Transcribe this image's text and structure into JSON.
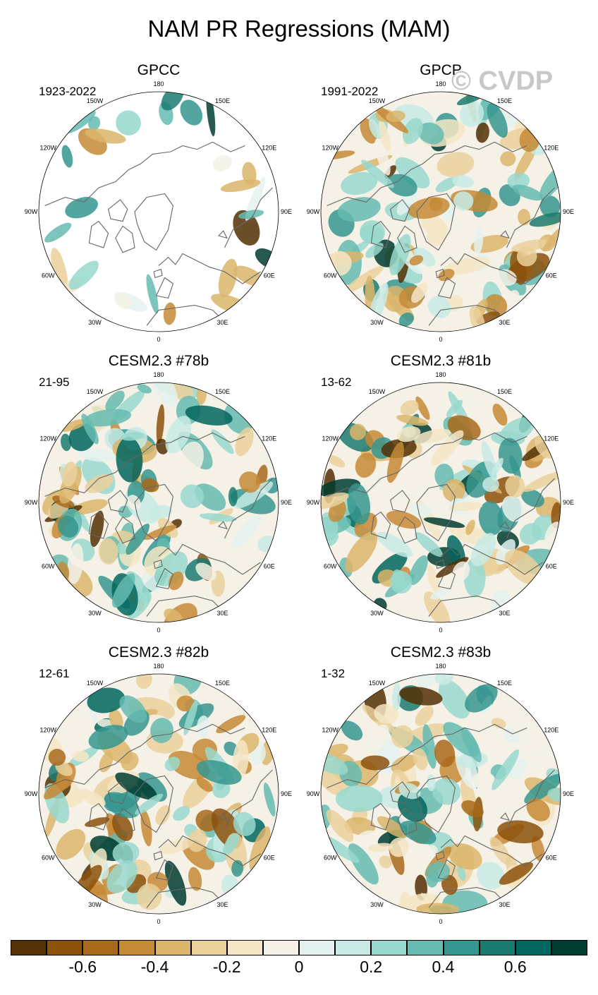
{
  "title": "NAM PR Regressions (MAM)",
  "watermark": "© CVDP",
  "panels": [
    {
      "title": "GPCC",
      "period": "1923-2022",
      "masked_ocean": true
    },
    {
      "title": "GPCP",
      "period": "1991-2022",
      "masked_ocean": false
    },
    {
      "title": "CESM2.3 #78b",
      "period": "21-95",
      "masked_ocean": false
    },
    {
      "title": "CESM2.3 #81b",
      "period": "13-62",
      "masked_ocean": false
    },
    {
      "title": "CESM2.3 #82b",
      "period": "12-61",
      "masked_ocean": false
    },
    {
      "title": "CESM2.3 #83b",
      "period": "1-32",
      "masked_ocean": false
    }
  ],
  "longitude_labels": [
    "180",
    "150E",
    "120E",
    "90E",
    "60E",
    "30E",
    "0",
    "30W",
    "60W",
    "90W",
    "120W",
    "150W"
  ],
  "colorbar": {
    "colors": [
      "#543005",
      "#8c510a",
      "#a8691a",
      "#c58a36",
      "#dbb56b",
      "#ead09a",
      "#f5e6c4",
      "#f5f1e6",
      "#e4f2ef",
      "#c7eae4",
      "#98d8cd",
      "#65bbb0",
      "#35978f",
      "#1b7a70",
      "#01665e",
      "#003c30"
    ],
    "tick_labels": [
      "-0.6",
      "-0.4",
      "-0.2",
      "0",
      "0.2",
      "0.4",
      "0.6"
    ],
    "tick_values": [
      -0.6,
      -0.4,
      -0.2,
      0,
      0.2,
      0.4,
      0.6
    ],
    "range": [
      -0.8,
      0.8
    ]
  }
}
